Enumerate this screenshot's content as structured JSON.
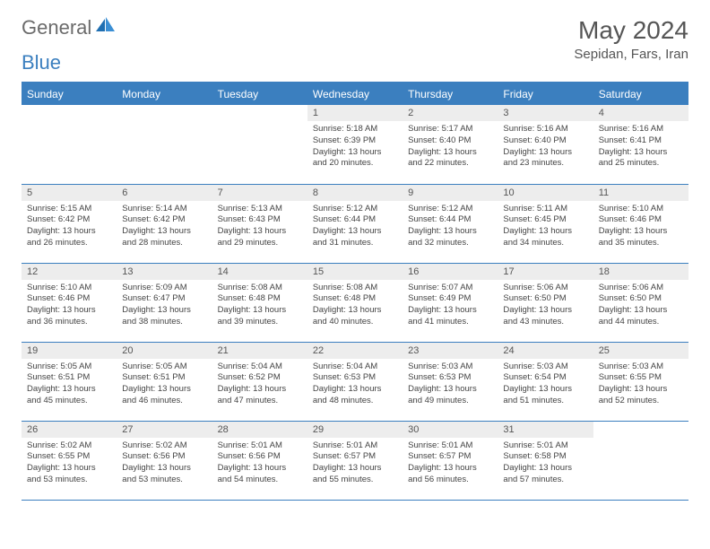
{
  "brand": {
    "part1": "General",
    "part2": "Blue"
  },
  "title": "May 2024",
  "location": "Sepidan, Fars, Iran",
  "colors": {
    "accent": "#3b7fbf",
    "header_text": "#ffffff",
    "daynum_bg": "#ededed",
    "text_muted": "#555555",
    "body_text": "#444444",
    "logo_gray": "#6b6b6b"
  },
  "weekdays": [
    "Sunday",
    "Monday",
    "Tuesday",
    "Wednesday",
    "Thursday",
    "Friday",
    "Saturday"
  ],
  "weeks": [
    [
      {
        "n": "",
        "lines": []
      },
      {
        "n": "",
        "lines": []
      },
      {
        "n": "",
        "lines": []
      },
      {
        "n": "1",
        "lines": [
          "Sunrise: 5:18 AM",
          "Sunset: 6:39 PM",
          "Daylight: 13 hours",
          "and 20 minutes."
        ]
      },
      {
        "n": "2",
        "lines": [
          "Sunrise: 5:17 AM",
          "Sunset: 6:40 PM",
          "Daylight: 13 hours",
          "and 22 minutes."
        ]
      },
      {
        "n": "3",
        "lines": [
          "Sunrise: 5:16 AM",
          "Sunset: 6:40 PM",
          "Daylight: 13 hours",
          "and 23 minutes."
        ]
      },
      {
        "n": "4",
        "lines": [
          "Sunrise: 5:16 AM",
          "Sunset: 6:41 PM",
          "Daylight: 13 hours",
          "and 25 minutes."
        ]
      }
    ],
    [
      {
        "n": "5",
        "lines": [
          "Sunrise: 5:15 AM",
          "Sunset: 6:42 PM",
          "Daylight: 13 hours",
          "and 26 minutes."
        ]
      },
      {
        "n": "6",
        "lines": [
          "Sunrise: 5:14 AM",
          "Sunset: 6:42 PM",
          "Daylight: 13 hours",
          "and 28 minutes."
        ]
      },
      {
        "n": "7",
        "lines": [
          "Sunrise: 5:13 AM",
          "Sunset: 6:43 PM",
          "Daylight: 13 hours",
          "and 29 minutes."
        ]
      },
      {
        "n": "8",
        "lines": [
          "Sunrise: 5:12 AM",
          "Sunset: 6:44 PM",
          "Daylight: 13 hours",
          "and 31 minutes."
        ]
      },
      {
        "n": "9",
        "lines": [
          "Sunrise: 5:12 AM",
          "Sunset: 6:44 PM",
          "Daylight: 13 hours",
          "and 32 minutes."
        ]
      },
      {
        "n": "10",
        "lines": [
          "Sunrise: 5:11 AM",
          "Sunset: 6:45 PM",
          "Daylight: 13 hours",
          "and 34 minutes."
        ]
      },
      {
        "n": "11",
        "lines": [
          "Sunrise: 5:10 AM",
          "Sunset: 6:46 PM",
          "Daylight: 13 hours",
          "and 35 minutes."
        ]
      }
    ],
    [
      {
        "n": "12",
        "lines": [
          "Sunrise: 5:10 AM",
          "Sunset: 6:46 PM",
          "Daylight: 13 hours",
          "and 36 minutes."
        ]
      },
      {
        "n": "13",
        "lines": [
          "Sunrise: 5:09 AM",
          "Sunset: 6:47 PM",
          "Daylight: 13 hours",
          "and 38 minutes."
        ]
      },
      {
        "n": "14",
        "lines": [
          "Sunrise: 5:08 AM",
          "Sunset: 6:48 PM",
          "Daylight: 13 hours",
          "and 39 minutes."
        ]
      },
      {
        "n": "15",
        "lines": [
          "Sunrise: 5:08 AM",
          "Sunset: 6:48 PM",
          "Daylight: 13 hours",
          "and 40 minutes."
        ]
      },
      {
        "n": "16",
        "lines": [
          "Sunrise: 5:07 AM",
          "Sunset: 6:49 PM",
          "Daylight: 13 hours",
          "and 41 minutes."
        ]
      },
      {
        "n": "17",
        "lines": [
          "Sunrise: 5:06 AM",
          "Sunset: 6:50 PM",
          "Daylight: 13 hours",
          "and 43 minutes."
        ]
      },
      {
        "n": "18",
        "lines": [
          "Sunrise: 5:06 AM",
          "Sunset: 6:50 PM",
          "Daylight: 13 hours",
          "and 44 minutes."
        ]
      }
    ],
    [
      {
        "n": "19",
        "lines": [
          "Sunrise: 5:05 AM",
          "Sunset: 6:51 PM",
          "Daylight: 13 hours",
          "and 45 minutes."
        ]
      },
      {
        "n": "20",
        "lines": [
          "Sunrise: 5:05 AM",
          "Sunset: 6:51 PM",
          "Daylight: 13 hours",
          "and 46 minutes."
        ]
      },
      {
        "n": "21",
        "lines": [
          "Sunrise: 5:04 AM",
          "Sunset: 6:52 PM",
          "Daylight: 13 hours",
          "and 47 minutes."
        ]
      },
      {
        "n": "22",
        "lines": [
          "Sunrise: 5:04 AM",
          "Sunset: 6:53 PM",
          "Daylight: 13 hours",
          "and 48 minutes."
        ]
      },
      {
        "n": "23",
        "lines": [
          "Sunrise: 5:03 AM",
          "Sunset: 6:53 PM",
          "Daylight: 13 hours",
          "and 49 minutes."
        ]
      },
      {
        "n": "24",
        "lines": [
          "Sunrise: 5:03 AM",
          "Sunset: 6:54 PM",
          "Daylight: 13 hours",
          "and 51 minutes."
        ]
      },
      {
        "n": "25",
        "lines": [
          "Sunrise: 5:03 AM",
          "Sunset: 6:55 PM",
          "Daylight: 13 hours",
          "and 52 minutes."
        ]
      }
    ],
    [
      {
        "n": "26",
        "lines": [
          "Sunrise: 5:02 AM",
          "Sunset: 6:55 PM",
          "Daylight: 13 hours",
          "and 53 minutes."
        ]
      },
      {
        "n": "27",
        "lines": [
          "Sunrise: 5:02 AM",
          "Sunset: 6:56 PM",
          "Daylight: 13 hours",
          "and 53 minutes."
        ]
      },
      {
        "n": "28",
        "lines": [
          "Sunrise: 5:01 AM",
          "Sunset: 6:56 PM",
          "Daylight: 13 hours",
          "and 54 minutes."
        ]
      },
      {
        "n": "29",
        "lines": [
          "Sunrise: 5:01 AM",
          "Sunset: 6:57 PM",
          "Daylight: 13 hours",
          "and 55 minutes."
        ]
      },
      {
        "n": "30",
        "lines": [
          "Sunrise: 5:01 AM",
          "Sunset: 6:57 PM",
          "Daylight: 13 hours",
          "and 56 minutes."
        ]
      },
      {
        "n": "31",
        "lines": [
          "Sunrise: 5:01 AM",
          "Sunset: 6:58 PM",
          "Daylight: 13 hours",
          "and 57 minutes."
        ]
      },
      {
        "n": "",
        "lines": []
      }
    ]
  ]
}
